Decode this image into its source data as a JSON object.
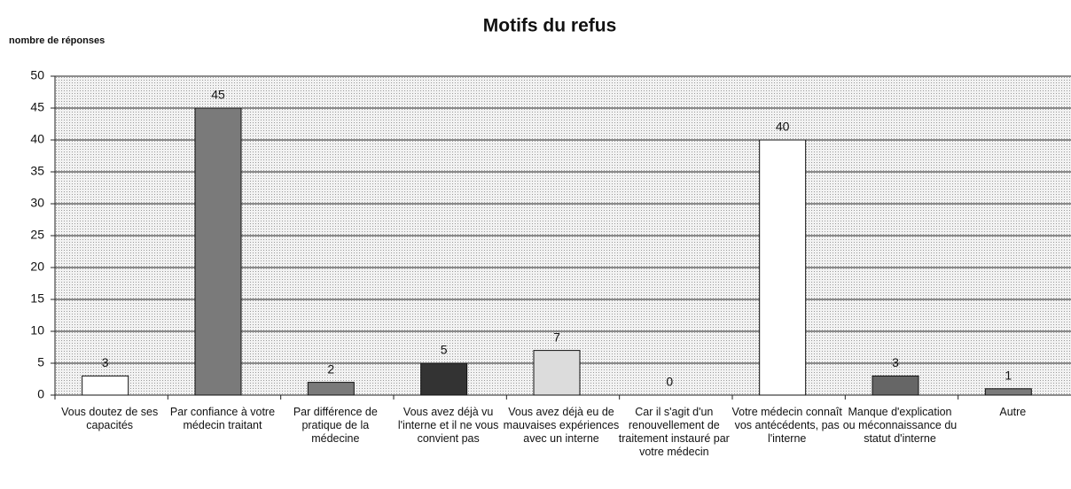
{
  "chart_data": {
    "type": "bar",
    "title": "Motifs du refus",
    "y_label": "nombre de réponses",
    "categories": [
      "Vous doutez de ses capacités",
      "Par confiance à votre médecin traitant",
      "Par différence de pratique de la médecine",
      "Vous avez déjà vu l'interne et il ne vous convient pas",
      "Vous avez déjà eu de mauvaises expériences avec un interne",
      "Car il s'agit d'un renouvellement de traitement instauré par votre médecin",
      "Votre médecin connaît vos antécédents, pas l'interne",
      "Manque d'explication ou méconnaissance du statut d'interne",
      "Autre"
    ],
    "values": [
      3,
      45,
      2,
      5,
      7,
      0,
      40,
      3,
      1
    ],
    "colors": [
      "#ffffff",
      "#7a7a7a",
      "#7a7a7a",
      "#333333",
      "#dcdcdc",
      "#ffffff",
      "#ffffff",
      "#666666",
      "#7a7a7a"
    ],
    "ylim": [
      0,
      50
    ],
    "yticks": [
      0,
      5,
      10,
      15,
      20,
      25,
      30,
      35,
      40,
      45,
      50
    ],
    "grid": true
  }
}
